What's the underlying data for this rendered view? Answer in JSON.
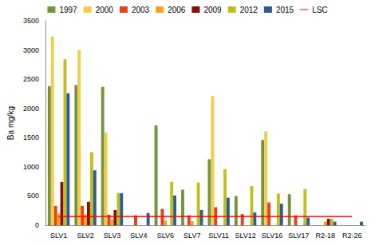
{
  "chart_data": {
    "type": "bar",
    "y_label": "Ba mg/kg",
    "categories": [
      "SLV1",
      "SLV2",
      "SLV3",
      "SLV4",
      "SLV6",
      "SLV7",
      "SLV11",
      "SLV12",
      "SLV16",
      "SLV17",
      "R2-18",
      "R2-26"
    ],
    "series": [
      {
        "name": "1997",
        "color": "#77933c",
        "values": [
          2380,
          2400,
          2370,
          null,
          1710,
          610,
          1130,
          500,
          1460,
          530,
          null,
          null
        ]
      },
      {
        "name": "2000",
        "color": "#f2cc4b",
        "values": [
          3230,
          3000,
          1590,
          null,
          null,
          null,
          2210,
          null,
          1610,
          null,
          null,
          null
        ]
      },
      {
        "name": "2003",
        "color": "#e8401c",
        "values": [
          330,
          330,
          180,
          170,
          280,
          170,
          310,
          190,
          390,
          170,
          null,
          null
        ]
      },
      {
        "name": "2006",
        "color": "#f7a21b",
        "values": [
          200,
          180,
          100,
          null,
          80,
          70,
          null,
          null,
          null,
          null,
          60,
          null
        ]
      },
      {
        "name": "2009",
        "color": "#8b0e04",
        "values": [
          740,
          400,
          260,
          null,
          null,
          null,
          null,
          null,
          null,
          null,
          110,
          null
        ]
      },
      {
        "name": "2012",
        "color": "#bfbf1f",
        "values": [
          2840,
          1250,
          550,
          null,
          740,
          730,
          960,
          670,
          540,
          620,
          110,
          null
        ]
      },
      {
        "name": "2015",
        "color": "#2e5f8a",
        "values": [
          2260,
          940,
          550,
          210,
          510,
          260,
          470,
          220,
          370,
          130,
          60,
          60
        ]
      },
      {
        "name": "LSC",
        "type": "line",
        "color": "#ff0000",
        "values": [
          150,
          150,
          150,
          150,
          150,
          150,
          150,
          150,
          150,
          150,
          150,
          150
        ]
      }
    ],
    "ylim": [
      0,
      3500
    ],
    "yticks": [
      0,
      500,
      1000,
      1500,
      2000,
      2500,
      3000,
      3500
    ],
    "grid": false,
    "legend": "top"
  }
}
